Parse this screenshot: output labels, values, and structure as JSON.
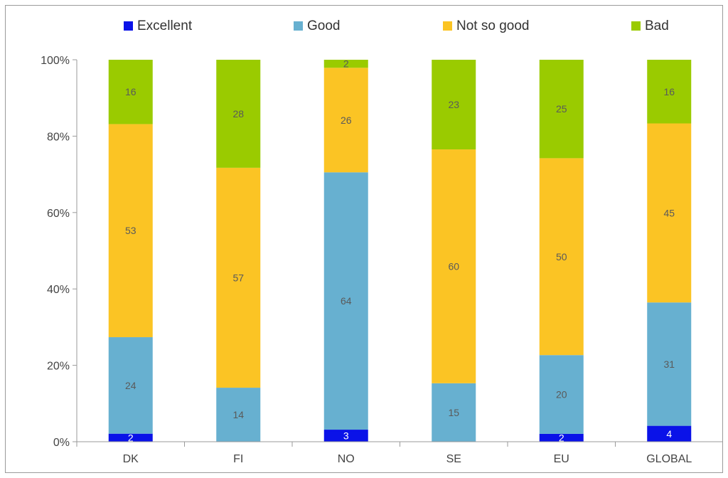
{
  "chart_data": {
    "type": "bar",
    "stacked": true,
    "percent_stacked": true,
    "categories": [
      "DK",
      "FI",
      "NO",
      "SE",
      "EU",
      "GLOBAL"
    ],
    "series": [
      {
        "name": "Excellent",
        "color": "#0a12e8",
        "values": [
          2,
          0,
          3,
          0,
          2,
          4
        ],
        "labels": [
          "2",
          "",
          "3",
          "",
          "2",
          "4"
        ]
      },
      {
        "name": "Good",
        "color": "#67b0d0",
        "values": [
          24,
          14,
          64,
          15,
          20,
          31
        ],
        "labels": [
          "24",
          "14",
          "64",
          "15",
          "20",
          "31"
        ]
      },
      {
        "name": "Not so good",
        "color": "#fbc424",
        "values": [
          53,
          57,
          26,
          60,
          50,
          45
        ],
        "labels": [
          "53",
          "57",
          "26",
          "60",
          "50",
          "45"
        ]
      },
      {
        "name": "Bad",
        "color": "#9acb00",
        "values": [
          16,
          28,
          2,
          23,
          25,
          16
        ],
        "labels": [
          "16",
          "28",
          "2",
          "23",
          "25",
          "16"
        ]
      }
    ],
    "y_ticks": [
      "0%",
      "20%",
      "40%",
      "60%",
      "80%",
      "100%"
    ],
    "ylim": [
      0,
      100
    ],
    "grid": false,
    "legend_position": "top"
  }
}
